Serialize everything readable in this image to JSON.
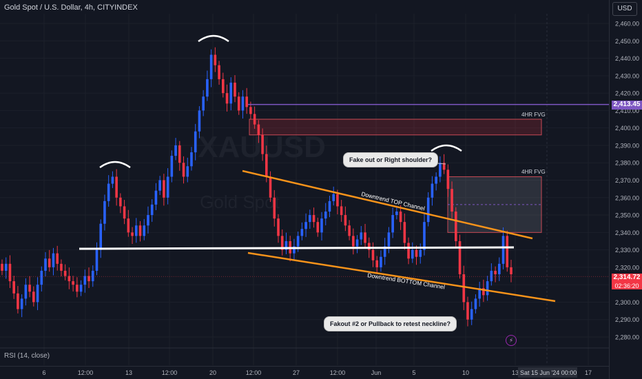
{
  "header": {
    "title": "Gold Spot / U.S. Dollar, 4h, CITYINDEX"
  },
  "currency_button": "USD",
  "watermark": {
    "symbol": "XAUUSD",
    "name": "Gold Spot"
  },
  "indicator_label": "RSI (14, close)",
  "price_tags": {
    "level": "2,413.45",
    "last": "2,314.72",
    "countdown": "02:36:20"
  },
  "annotations": {
    "fvg_top": "4HR FVG",
    "fvg_mid": "4HR FVG",
    "right_shoulder": "Fake out or Right shoulder?",
    "fakeout": "Fakout #2 or Pullback to retest neckline?",
    "top_channel": "Downtrend TOP Channel",
    "bottom_channel": "Downtrend BOTTOM Channel"
  },
  "x_axis": {
    "labels": [
      "6",
      "12:00",
      "13",
      "12:00",
      "20",
      "12:00",
      "27",
      "12:00",
      "Jun",
      "5",
      "10",
      "13",
      "17"
    ],
    "cursor_label": "Sat 15 Jun '24   00:00"
  },
  "icons": {
    "alert": "bolt-icon"
  },
  "colors": {
    "up": "#2962ff",
    "down": "#f23645",
    "orange": "#f7931a",
    "purple": "#7e57c2",
    "bg": "#131722"
  },
  "chart_data": {
    "type": "candlestick",
    "title": "Gold Spot / U.S. Dollar, 4h, CITYINDEX",
    "ylim": [
      2275,
      2470
    ],
    "y_ticks": [
      "2,460.00",
      "2,450.00",
      "2,440.00",
      "2,430.00",
      "2,420.00",
      "2,410.00",
      "2,400.00",
      "2,390.00",
      "2,380.00",
      "2,370.00",
      "2,360.00",
      "2,350.00",
      "2,340.00",
      "2,330.00",
      "2,320.00",
      "2,310.00",
      "2,300.00",
      "2,290.00",
      "2,280.00"
    ],
    "close": [
      2318,
      2322,
      2312,
      2305,
      2296,
      2302,
      2310,
      2306,
      2300,
      2310,
      2318,
      2325,
      2320,
      2328,
      2322,
      2318,
      2315,
      2312,
      2310,
      2306,
      2310,
      2315,
      2312,
      2318,
      2330,
      2345,
      2358,
      2368,
      2372,
      2360,
      2355,
      2348,
      2340,
      2338,
      2344,
      2338,
      2344,
      2350,
      2356,
      2364,
      2370,
      2360,
      2372,
      2384,
      2390,
      2380,
      2372,
      2378,
      2386,
      2398,
      2410,
      2418,
      2428,
      2442,
      2436,
      2428,
      2420,
      2414,
      2426,
      2418,
      2410,
      2418,
      2412,
      2408,
      2402,
      2396,
      2385,
      2372,
      2360,
      2348,
      2338,
      2330,
      2335,
      2328,
      2332,
      2338,
      2342,
      2346,
      2350,
      2346,
      2340,
      2348,
      2352,
      2358,
      2362,
      2355,
      2350,
      2344,
      2338,
      2332,
      2336,
      2340,
      2334,
      2330,
      2324,
      2320,
      2326,
      2332,
      2340,
      2350,
      2352,
      2346,
      2334,
      2325,
      2330,
      2326,
      2330,
      2346,
      2360,
      2368,
      2372,
      2380,
      2376,
      2365,
      2352,
      2335,
      2316,
      2300,
      2290,
      2296,
      2302,
      2308,
      2304,
      2312,
      2318,
      2316,
      2322,
      2338,
      2320,
      2316
    ]
  }
}
